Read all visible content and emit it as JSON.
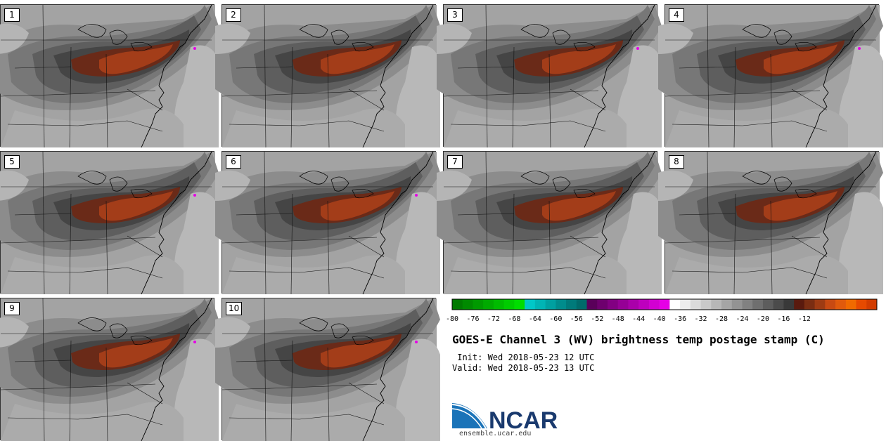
{
  "panels": [
    {
      "label": "1",
      "spot": true
    },
    {
      "label": "2",
      "spot": false
    },
    {
      "label": "3",
      "spot": true
    },
    {
      "label": "4",
      "spot": true
    },
    {
      "label": "5",
      "spot": true
    },
    {
      "label": "6",
      "spot": true
    },
    {
      "label": "7",
      "spot": false
    },
    {
      "label": "8",
      "spot": false
    },
    {
      "label": "9",
      "spot": true
    },
    {
      "label": "10",
      "spot": true
    }
  ],
  "colorbar": {
    "colors": [
      "#007a00",
      "#008a00",
      "#009a00",
      "#00aa00",
      "#00bb00",
      "#00cc00",
      "#00dd00",
      "#00c8c8",
      "#00b4b4",
      "#00a0a0",
      "#008c8c",
      "#007a7a",
      "#006a6a",
      "#5a005a",
      "#6e006e",
      "#820082",
      "#960096",
      "#aa00aa",
      "#be00be",
      "#d200d2",
      "#e600e6",
      "#ffffff",
      "#ededed",
      "#dbdbdb",
      "#c9c9c9",
      "#b7b7b7",
      "#a5a5a5",
      "#939393",
      "#818181",
      "#6f6f6f",
      "#5d5d5d",
      "#4b4b4b",
      "#393939",
      "#5a1a0e",
      "#7a2d12",
      "#9e3b13",
      "#c84a12",
      "#e05a0c",
      "#f06a00",
      "#e64a00",
      "#d23c00"
    ],
    "ticks": [
      "-80",
      "-76",
      "-72",
      "-68",
      "-64",
      "-60",
      "-56",
      "-52",
      "-48",
      "-44",
      "-40",
      "-36",
      "-32",
      "-28",
      "-24",
      "-20",
      "-16",
      "-12"
    ]
  },
  "title": "GOES-E Channel 3 (WV) brightness temp postage stamp (C)",
  "init_line": " Init: Wed 2018-05-23 12 UTC",
  "valid_line": "Valid: Wed 2018-05-23 13 UTC",
  "logo_text": "NCAR",
  "url": "ensemble.ucar.edu"
}
